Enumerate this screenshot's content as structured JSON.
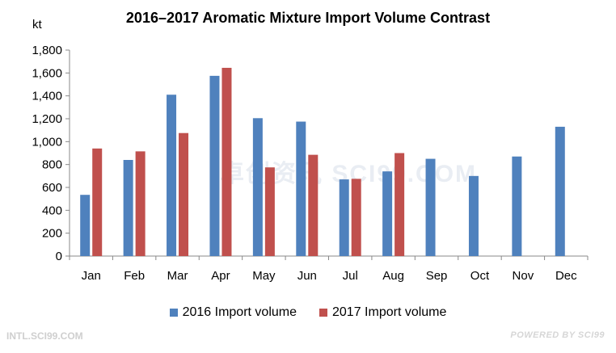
{
  "chart_data": {
    "type": "bar",
    "title": "2016–2017 Aromatic Mixture Import Volume Contrast",
    "ylabel": "kt",
    "xlabel": "",
    "categories": [
      "Jan",
      "Feb",
      "Mar",
      "Apr",
      "May",
      "Jun",
      "Jul",
      "Aug",
      "Sep",
      "Oct",
      "Nov",
      "Dec"
    ],
    "series": [
      {
        "name": "2016 Import volume",
        "color": "#4f81bd",
        "values": [
          535,
          840,
          1410,
          1575,
          1205,
          1175,
          670,
          740,
          850,
          700,
          870,
          1130
        ]
      },
      {
        "name": "2017 Import volume",
        "color": "#c0504d",
        "values": [
          940,
          915,
          1075,
          1645,
          775,
          885,
          675,
          900,
          null,
          null,
          null,
          null
        ]
      }
    ],
    "ylim": [
      0,
      1800
    ],
    "yticks": [
      "0",
      "200",
      "400",
      "600",
      "800",
      "1,000",
      "1,200",
      "1,400",
      "1,600",
      "1,800"
    ],
    "legend_position": "bottom",
    "grid": false
  },
  "watermark": "卓创资讯 SCI99.COM",
  "footer": {
    "left": "INTL.SCI99.COM",
    "right": "POWERED BY SCI99"
  }
}
